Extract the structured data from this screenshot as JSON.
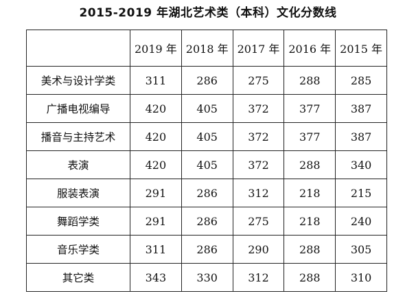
{
  "title": "2015-2019 年湖北艺术类（本科）文化分数线",
  "table": {
    "corner": "",
    "years": [
      "2019 年",
      "2018 年",
      "2017 年",
      "2016 年",
      "2015 年"
    ],
    "rows": [
      {
        "category": "美术与设计学类",
        "values": [
          "311",
          "286",
          "275",
          "288",
          "285"
        ]
      },
      {
        "category": "广播电视编导",
        "values": [
          "420",
          "405",
          "372",
          "377",
          "387"
        ]
      },
      {
        "category": "播音与主持艺术",
        "values": [
          "420",
          "405",
          "372",
          "377",
          "387"
        ]
      },
      {
        "category": "表演",
        "values": [
          "420",
          "405",
          "372",
          "288",
          "340"
        ]
      },
      {
        "category": "服装表演",
        "values": [
          "291",
          "286",
          "312",
          "218",
          "215"
        ]
      },
      {
        "category": "舞蹈学类",
        "values": [
          "291",
          "286",
          "275",
          "218",
          "240"
        ]
      },
      {
        "category": "音乐学类",
        "values": [
          "311",
          "286",
          "290",
          "288",
          "305"
        ]
      },
      {
        "category": "其它类",
        "values": [
          "343",
          "330",
          "312",
          "288",
          "310"
        ]
      }
    ]
  }
}
